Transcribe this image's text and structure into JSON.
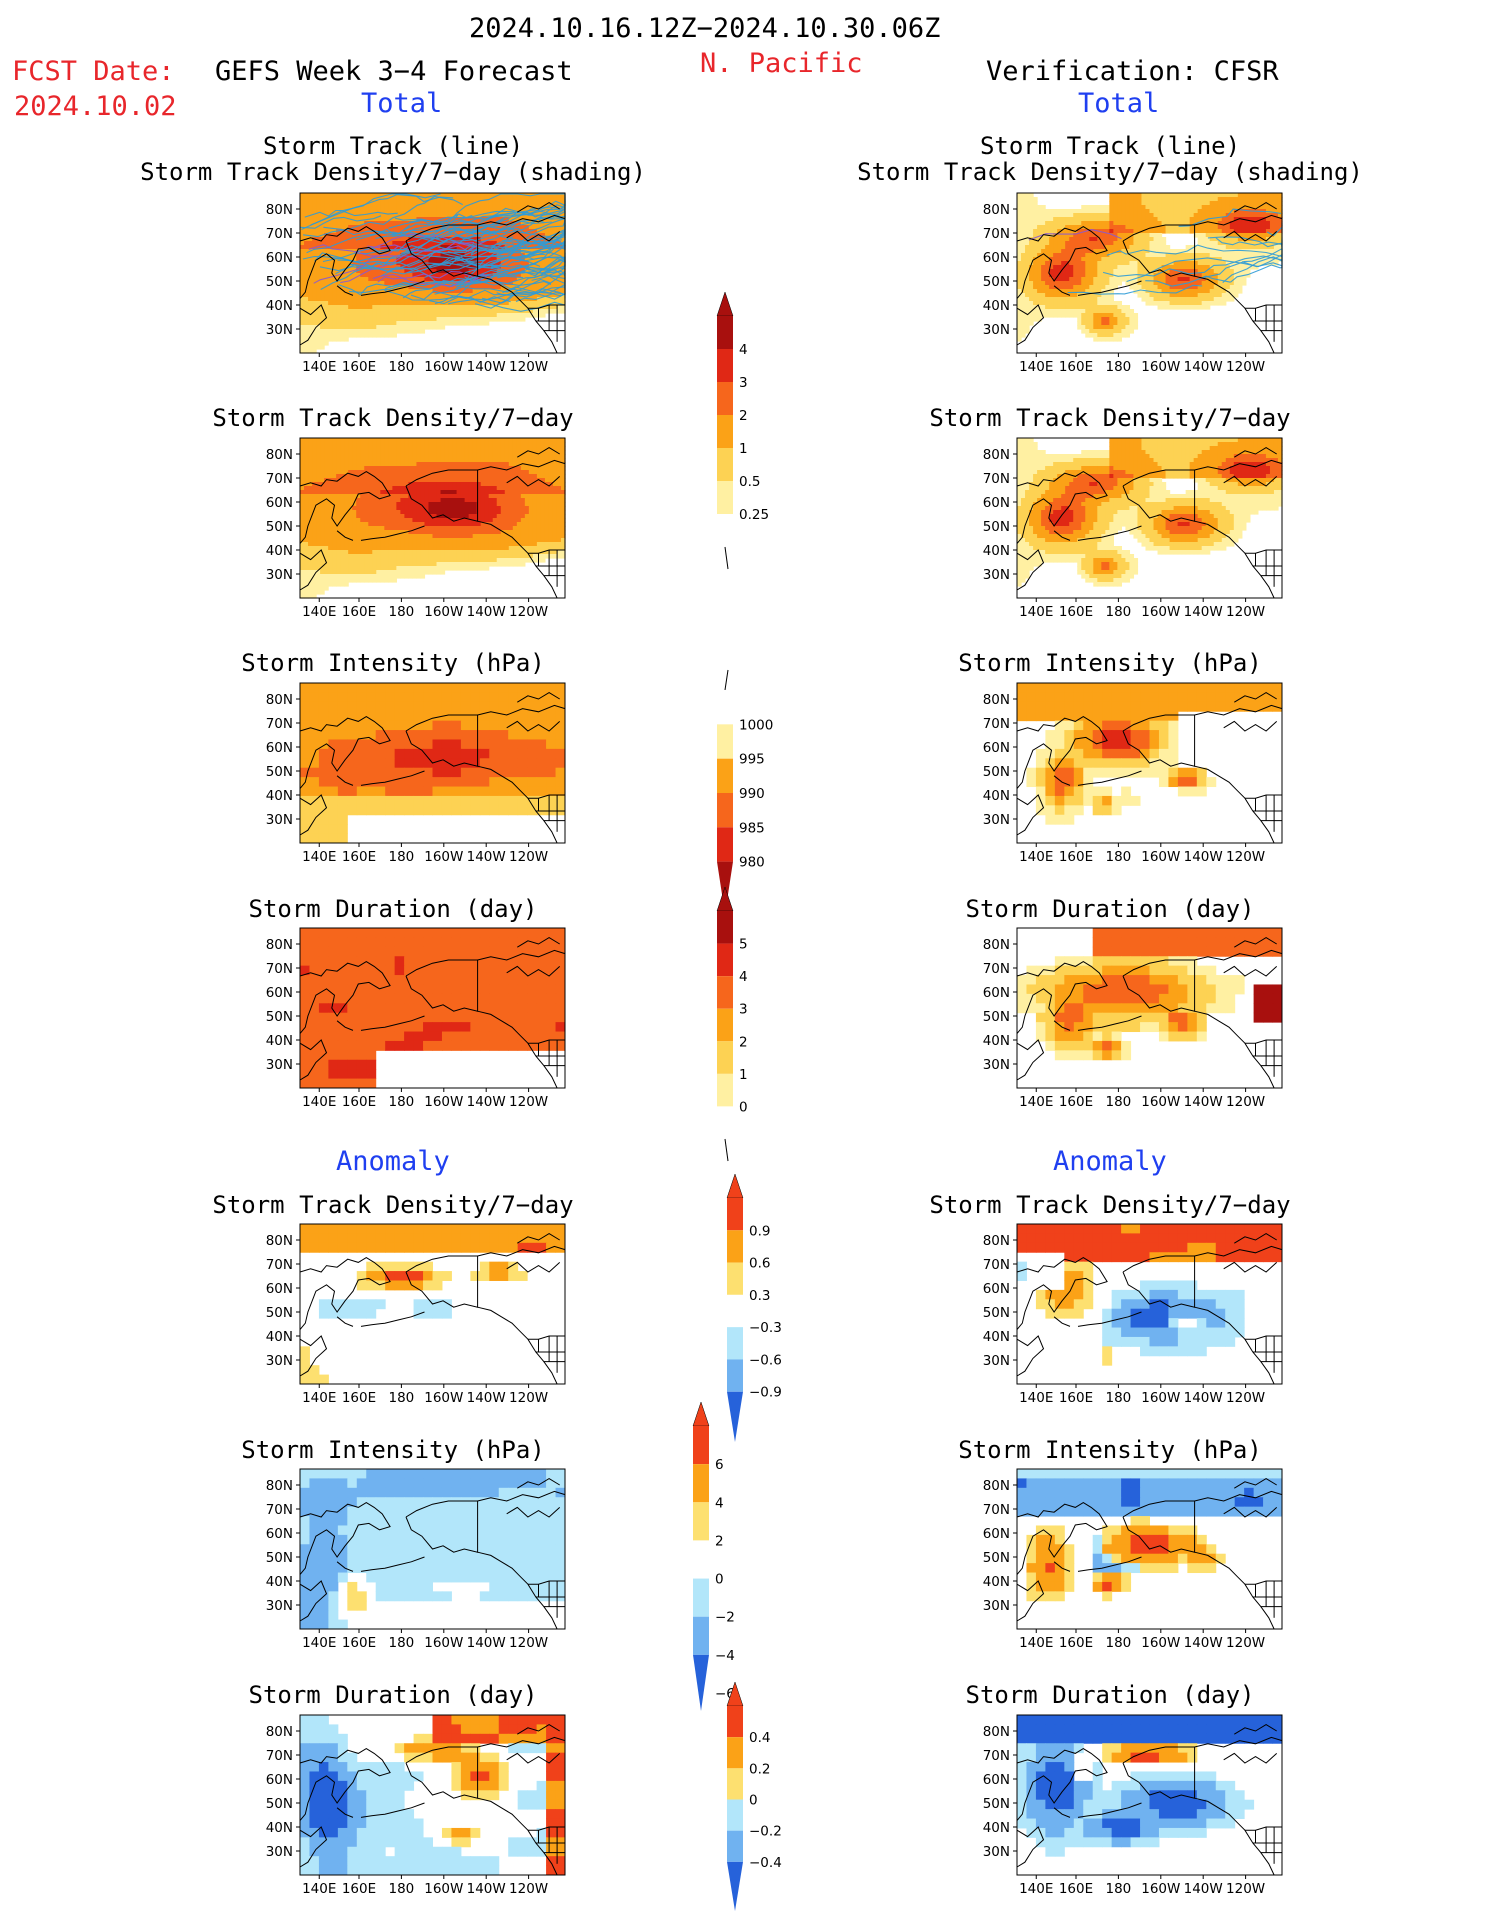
{
  "header": {
    "date_range": "2024.10.16.12Z−2024.10.30.06Z",
    "fcst_label": "FCST Date:",
    "fcst_date": "2024.10.02",
    "model_title": "GEFS Week 3−4 Forecast",
    "region": "N. Pacific",
    "verification": "Verification: CFSR",
    "left_total": "Total",
    "right_total": "Total",
    "left_anomaly": "Anomaly",
    "right_anomaly": "Anomaly"
  },
  "titles": {
    "track_line": "Storm Track (line)",
    "track_shading": "Storm Track Density/7−day (shading)",
    "density": "Storm Track Density/7−day",
    "intensity": "Storm Intensity (hPa)",
    "duration": "Storm Duration (day)"
  },
  "axes": {
    "lon_ticks": [
      "140E",
      "160E",
      "180",
      "160W",
      "140W",
      "120W"
    ],
    "lat_ticks": [
      "80N",
      "70N",
      "60N",
      "50N",
      "40N",
      "30N"
    ]
  },
  "colors": {
    "land_outline": "#000000",
    "track_lines": "#2f9bd6",
    "track_lines_dense": "#8a5ad0"
  },
  "colorbars": [
    {
      "name": "density-total",
      "labels": [
        "4",
        "3",
        "2",
        "1",
        "0.5",
        "0.25"
      ],
      "colors": [
        "#a8100e",
        "#e02815",
        "#f6661c",
        "#fba217",
        "#fdd253",
        "#fff0a2",
        "#ffffff"
      ]
    },
    {
      "name": "intensity-total",
      "labels": [
        "1000",
        "995",
        "990",
        "985",
        "980"
      ],
      "colors": [
        "#ffffff",
        "#fff0a2",
        "#fba217",
        "#f6661c",
        "#e02815",
        "#a8100e"
      ]
    },
    {
      "name": "duration-total",
      "labels": [
        "5",
        "4",
        "3",
        "2",
        "1",
        "0"
      ],
      "colors": [
        "#a8100e",
        "#e02815",
        "#f6661c",
        "#fba217",
        "#fdd253",
        "#fff0a2",
        "#ffffff"
      ]
    },
    {
      "name": "density-anomaly",
      "labels": [
        "0.9",
        "0.6",
        "0.3",
        "−0.3",
        "−0.6",
        "−0.9"
      ],
      "colors": [
        "#f0411a",
        "#fba217",
        "#fde070",
        "#ffffff",
        "#b2e6fa",
        "#70b2f0",
        "#2662da"
      ]
    },
    {
      "name": "intensity-anomaly",
      "labels": [
        "6",
        "4",
        "2",
        "0",
        "−2",
        "−4",
        "−6"
      ],
      "colors": [
        "#f0411a",
        "#fba217",
        "#fde070",
        "#ffffff",
        "#b2e6fa",
        "#70b2f0",
        "#2662da"
      ]
    },
    {
      "name": "duration-anomaly",
      "labels": [
        "0.4",
        "0.2",
        "0",
        "−0.2",
        "−0.4"
      ],
      "colors": [
        "#f0411a",
        "#fba217",
        "#fde070",
        "#b2e6fa",
        "#70b2f0",
        "#2662da"
      ]
    }
  ],
  "chart_data": [
    {
      "type": "heatmap",
      "panel": "GEFS total storm track line + density",
      "title": "Storm Track (line) / Storm Track Density/7−day (shading)",
      "dominant_levels": [
        1,
        2,
        3
      ],
      "max_level": 4,
      "max_region": "55–65N, 160E–140W"
    },
    {
      "type": "heatmap",
      "panel": "CFSR total storm track line + density",
      "title": "Storm Track (line) / Storm Track Density/7−day (shading)",
      "dominant_levels": [
        0.5,
        1,
        2,
        3
      ],
      "max_level": 4
    },
    {
      "type": "heatmap",
      "panel": "GEFS total density",
      "title": "Storm Track Density/7−day",
      "dominant_levels": [
        1,
        2,
        3
      ],
      "max_level": 4
    },
    {
      "type": "heatmap",
      "panel": "CFSR total density",
      "title": "Storm Track Density/7−day",
      "dominant_levels": [
        0.5,
        1,
        2,
        3
      ],
      "max_level": 4
    },
    {
      "type": "heatmap",
      "panel": "GEFS total intensity",
      "title": "Storm Intensity (hPa)",
      "dominant_levels": [
        990,
        985
      ],
      "min_level": 980
    },
    {
      "type": "heatmap",
      "panel": "CFSR total intensity",
      "title": "Storm Intensity (hPa)",
      "dominant_levels": [
        995,
        990,
        985
      ],
      "min_level": 980
    },
    {
      "type": "heatmap",
      "panel": "GEFS total duration",
      "title": "Storm Duration (day)",
      "dominant_levels": [
        2,
        3
      ],
      "max_level": 4
    },
    {
      "type": "heatmap",
      "panel": "CFSR total duration",
      "title": "Storm Duration (day)",
      "dominant_levels": [
        1,
        2,
        3
      ],
      "max_level": 4
    },
    {
      "type": "heatmap",
      "panel": "GEFS anomaly density",
      "title": "Storm Track Density/7−day",
      "dominant_levels": [
        0.3,
        0.6,
        0.9,
        -0.3
      ]
    },
    {
      "type": "heatmap",
      "panel": "CFSR anomaly density",
      "title": "Storm Track Density/7−day",
      "dominant_levels": [
        0.6,
        0.9,
        -0.6,
        -0.9
      ]
    },
    {
      "type": "heatmap",
      "panel": "GEFS anomaly intensity",
      "title": "Storm Intensity (hPa)",
      "dominant_levels": [
        -2,
        -4,
        2
      ]
    },
    {
      "type": "heatmap",
      "panel": "CFSR anomaly intensity",
      "title": "Storm Intensity (hPa)",
      "dominant_levels": [
        -4,
        -6,
        2,
        4,
        6
      ]
    },
    {
      "type": "heatmap",
      "panel": "GEFS anomaly duration",
      "title": "Storm Duration (day)",
      "dominant_levels": [
        -0.2,
        -0.4,
        0.2,
        0.4
      ]
    },
    {
      "type": "heatmap",
      "panel": "CFSR anomaly duration",
      "title": "Storm Duration (day)",
      "dominant_levels": [
        -0.4,
        0.2,
        0.4
      ]
    }
  ]
}
